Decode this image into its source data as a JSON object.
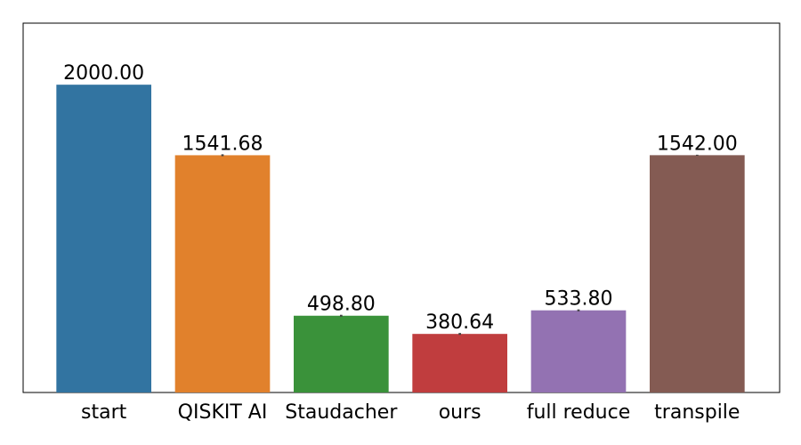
{
  "chart_data": {
    "type": "bar",
    "categories": [
      "start",
      "QISKIT AI",
      "Staudacher",
      "ours",
      "full reduce",
      "transpile"
    ],
    "values": [
      2000.0,
      1541.68,
      498.8,
      380.64,
      533.8,
      1542.0
    ],
    "value_labels": [
      "2000.00",
      "1541.68",
      "498.80",
      "380.64",
      "533.80",
      "1542.00"
    ],
    "errors": [
      0,
      6,
      6,
      6,
      6,
      3
    ],
    "colors": [
      "#3274a1",
      "#e1812c",
      "#3a923a",
      "#c03d3e",
      "#9372b2",
      "#845b53"
    ],
    "ylim": [
      0,
      2400
    ]
  }
}
